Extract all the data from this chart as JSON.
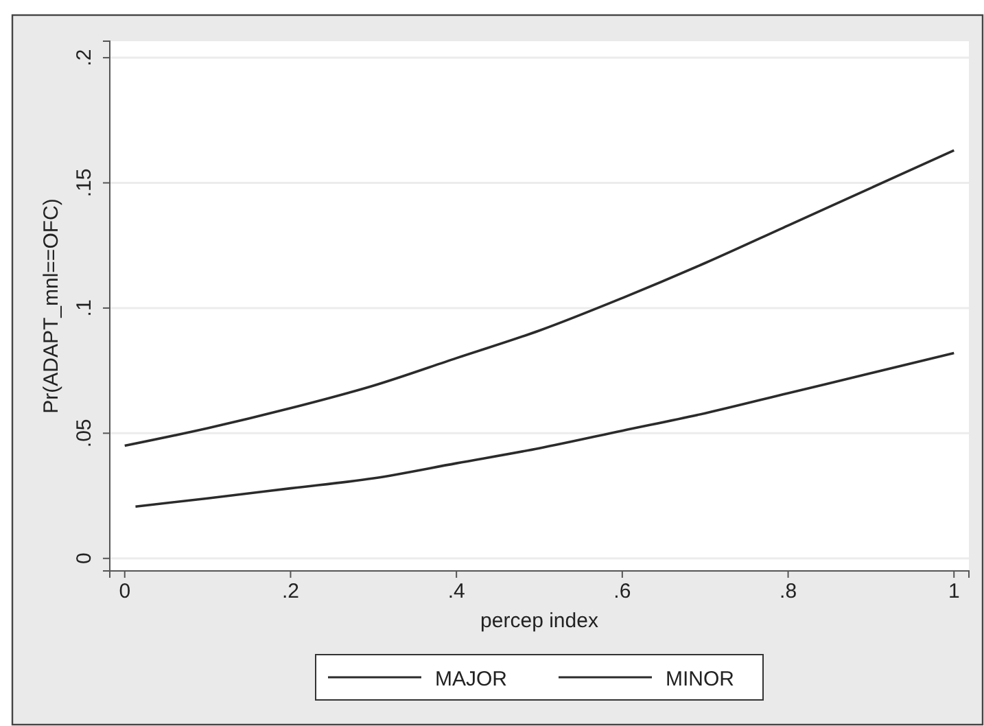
{
  "chart_data": {
    "type": "line",
    "xlabel": "percep index",
    "ylabel": "Pr(ADAPT_mnl==OFC)",
    "xlim": [
      -0.018,
      1.018
    ],
    "ylim": [
      -0.005,
      0.2066
    ],
    "xticks": [
      {
        "value": 0,
        "label": "0"
      },
      {
        "value": 0.2,
        "label": ".2"
      },
      {
        "value": 0.4,
        "label": ".4"
      },
      {
        "value": 0.6,
        "label": ".6"
      },
      {
        "value": 0.8,
        "label": ".8"
      },
      {
        "value": 1,
        "label": "1"
      }
    ],
    "yticks": [
      {
        "value": 0,
        "label": "0"
      },
      {
        "value": 0.05,
        "label": ".05"
      },
      {
        "value": 0.1,
        "label": ".1"
      },
      {
        "value": 0.15,
        "label": ".15"
      },
      {
        "value": 0.2,
        "label": ".2"
      }
    ],
    "grid": "y",
    "legend": "bottom",
    "marker": "none",
    "line_style": "solid",
    "series": [
      {
        "name": "MAJOR",
        "color": "#2b2b2b",
        "x": [
          0,
          0.1,
          0.2,
          0.3,
          0.4,
          0.5,
          0.6,
          0.7,
          0.8,
          0.9,
          1
        ],
        "values": [
          0.045,
          0.052,
          0.06,
          0.069,
          0.08,
          0.091,
          0.104,
          0.118,
          0.133,
          0.148,
          0.163
        ]
      },
      {
        "name": "MINOR",
        "color": "#2b2b2b",
        "x": [
          0.013,
          0.1,
          0.2,
          0.3,
          0.4,
          0.5,
          0.6,
          0.7,
          0.8,
          0.9,
          1
        ],
        "values": [
          0.0207,
          0.024,
          0.028,
          0.032,
          0.038,
          0.044,
          0.051,
          0.058,
          0.066,
          0.074,
          0.082
        ]
      }
    ]
  }
}
